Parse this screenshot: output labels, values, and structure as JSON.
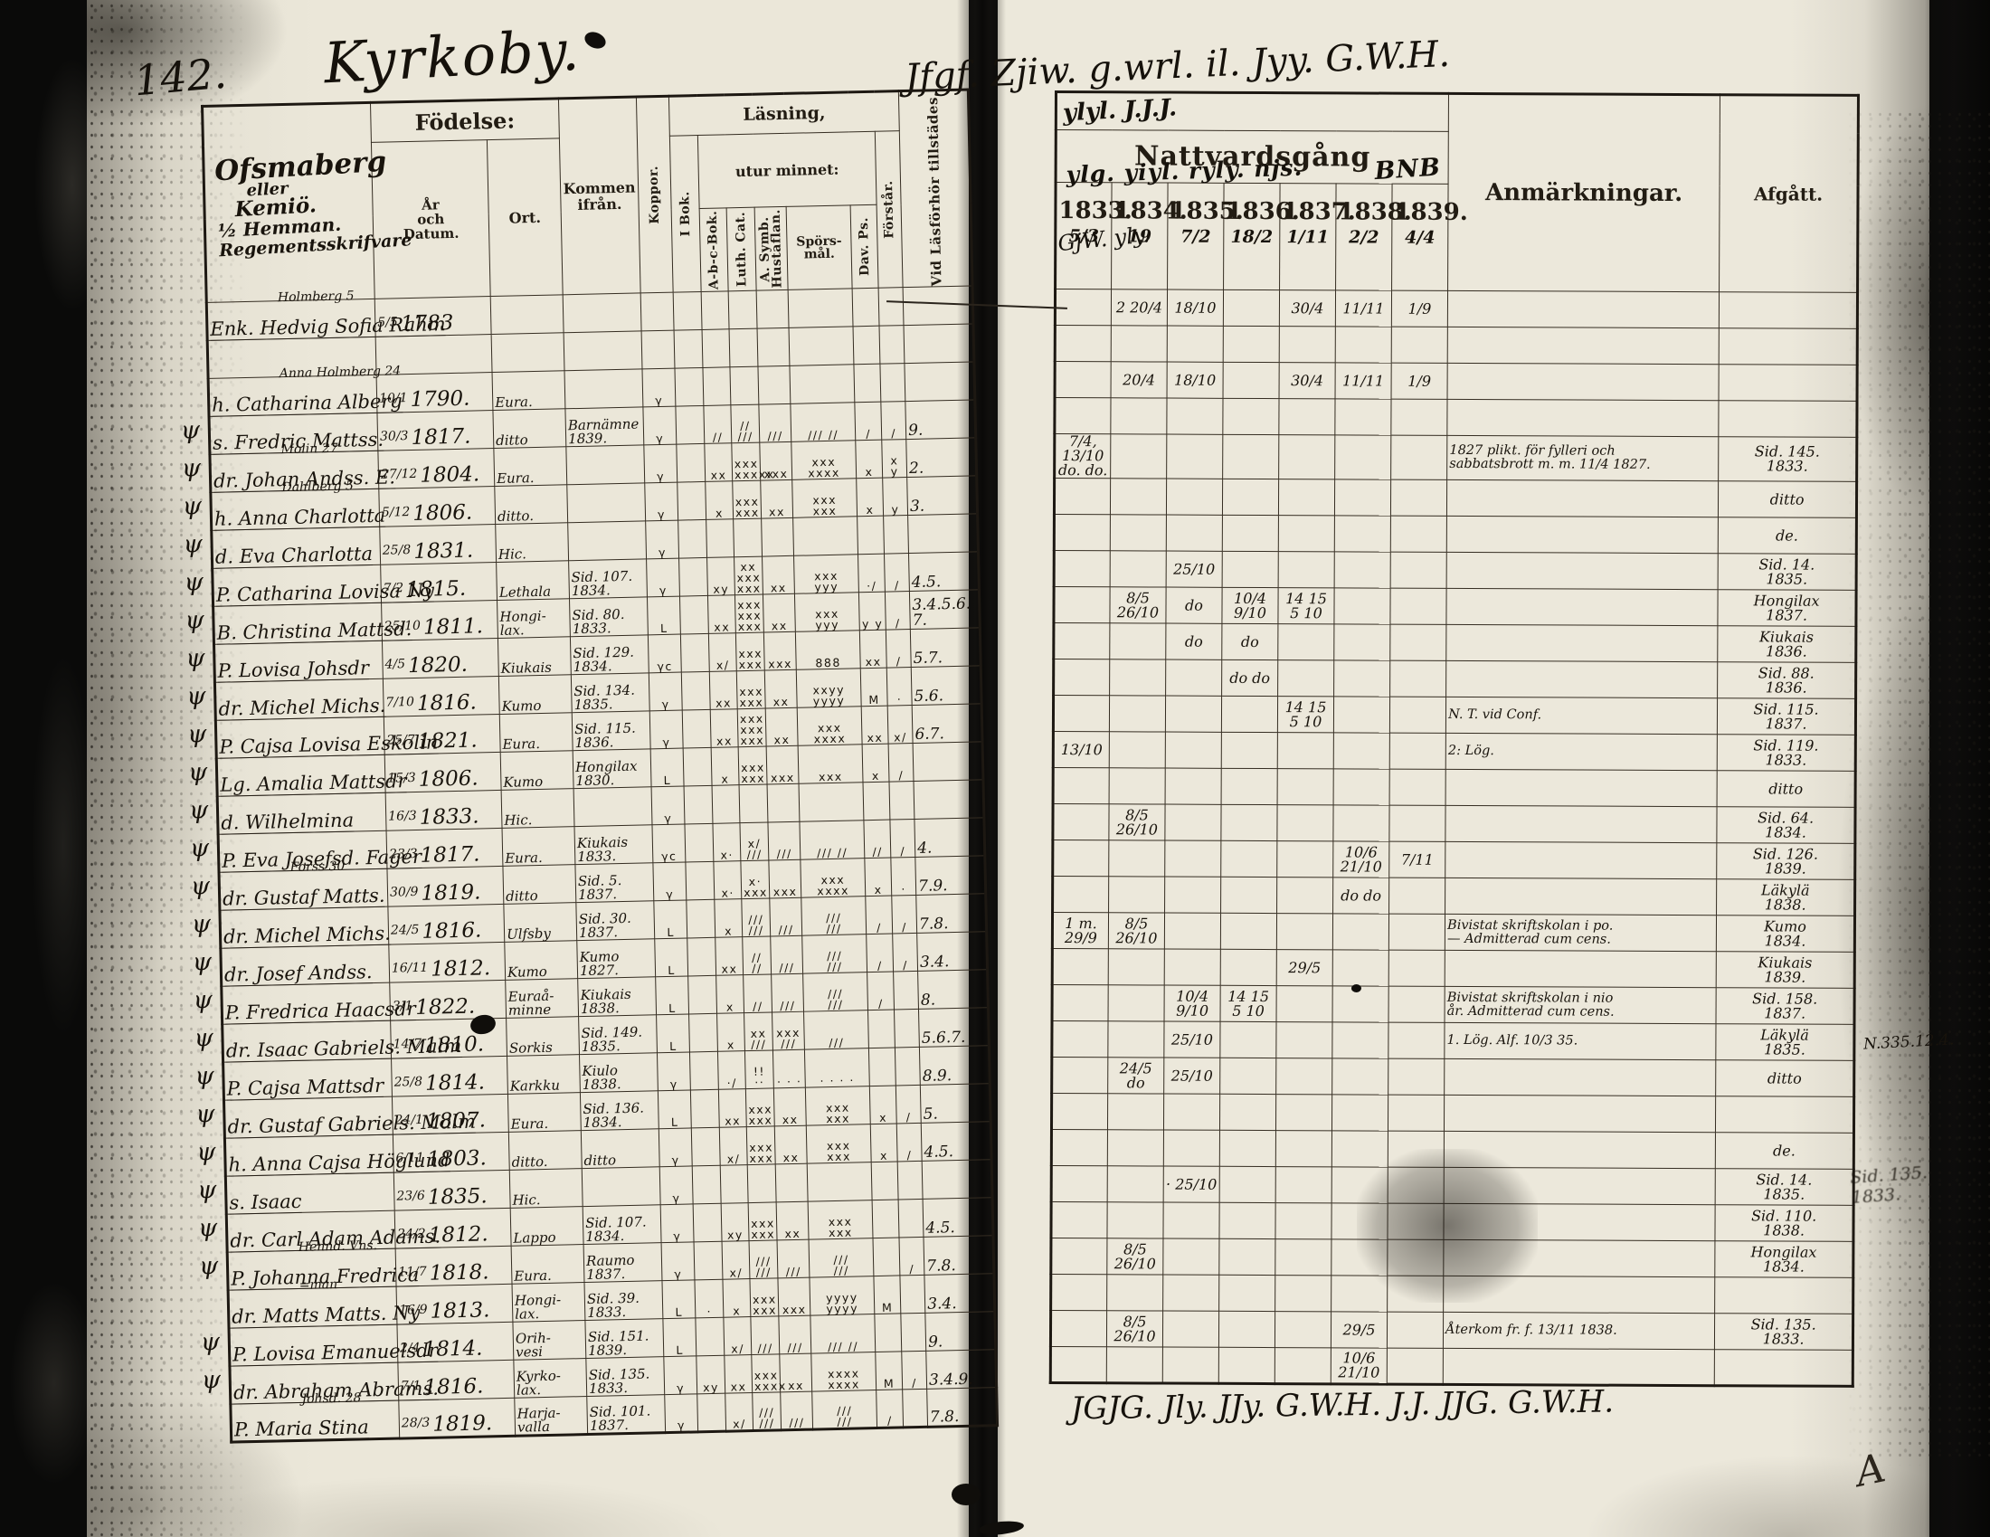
{
  "page_number": "142.",
  "title_script": "Kyrkoby.",
  "left_page": {
    "farm": [
      "Ofsmaberg",
      "eller",
      "Kemiö.",
      "½ Hemman.",
      "Regementsskrifvare"
    ],
    "header": {
      "birth": "Födelse:",
      "birth_date": "År\noch\nDatum.",
      "birth_place": "Ort.",
      "came_from": "Kommen\nifrån.",
      "smallpox": "Koppor.",
      "reading": "Läsning,",
      "by_heart": "utur minnet:",
      "in_book": "I Bok.",
      "abc_book": "A-b-c-Bok.",
      "luth_cat": "Luth. Cat.",
      "symbolum": "A. Symb.\nHustaflan.",
      "questions": "Spörs-\nmål.",
      "psalms": "Dav. Ps.",
      "understands": "Förstår.",
      "attendance": "Vid Läsförhör\ntillstädes."
    }
  },
  "right_page": {
    "communion_label": "Nattvardsgång",
    "remarks_label": "Anmärkningar.",
    "departed_label": "Afgått.",
    "years": [
      {
        "label": "1833.",
        "day": "5/3"
      },
      {
        "label": "1834.",
        "day": "19"
      },
      {
        "label": "1835.",
        "day": "7/2"
      },
      {
        "label": "1836.",
        "day": "18/2"
      },
      {
        "label": "1837.",
        "day": "1/11"
      },
      {
        "label": "1838.",
        "day": "2/2"
      },
      {
        "label": "1839.",
        "day": "4/4"
      }
    ],
    "scribbles": {
      "top": "Jfgf. Zjiw. g.wrl. il. Jyy. G.W.H.",
      "header1": "ylyl. J.J.J.",
      "header2": "ylg. yiyl. ryly. njs.",
      "header3": "BNB",
      "left_col": "GjW. yly.",
      "bottom": "JGJG.   Jly.   JJy.   G.W.H.   J.J.   JJG.   G.W.H."
    },
    "corner_mark": "A"
  },
  "rows": [
    {
      "margin_mark": "",
      "name_above": "Holmberg 5",
      "name": "Enk. Hedvig Sofia Rahm",
      "birth_day": "5/5",
      "birth_year": "1783",
      "birth_place": "",
      "came_from": "",
      "reading_marks": [
        "",
        "",
        "",
        "",
        "",
        "",
        "",
        ""
      ],
      "attended": "",
      "communion": {
        "1834": "2 20/4",
        "1835": "18/10",
        "1837": "30/4",
        "1838": "11/11",
        "1839": "1/9"
      },
      "remarks": "",
      "departed": ""
    },
    {
      "margin_mark": "",
      "name_above": "",
      "name": "",
      "birth_day": "",
      "birth_year": "",
      "birth_place": "",
      "came_from": "",
      "reading_marks": [
        "",
        "",
        "",
        "",
        "",
        "",
        "",
        ""
      ],
      "attended": "",
      "communion": {},
      "remarks": "",
      "departed": ""
    },
    {
      "margin_mark": "",
      "name_above": "Anna Holmberg 24",
      "name": "h. Catharina Alberg",
      "birth_day": "10/1",
      "birth_year": "1790.",
      "birth_place": "Eura.",
      "came_from": "",
      "reading_marks": [
        "γ",
        "",
        "",
        "",
        "",
        "",
        "",
        ""
      ],
      "attended": "",
      "communion": {
        "1834": "20/4",
        "1835": "18/10",
        "1837": "30/4",
        "1838": "11/11",
        "1839": "1/9"
      },
      "remarks": "",
      "departed": ""
    },
    {
      "margin_mark": "",
      "name_above": "",
      "name": "s. Fredric Mattss.",
      "birth_day": "30/3",
      "birth_year": "1817.",
      "birth_place": "ditto",
      "came_from": "Barnämne\n1839.",
      "reading_marks": [
        "γ",
        "",
        "//",
        "// ///",
        "///",
        "/// //",
        "/",
        "/"
      ],
      "attended": "9.",
      "communion": {},
      "remarks": "",
      "departed": ""
    },
    {
      "margin_mark": "ψ",
      "name_above": "Molin 27",
      "name": "dr. Johan Andss. E.",
      "birth_day": "27/12",
      "birth_year": "1804.",
      "birth_place": "Eura.",
      "came_from": "",
      "reading_marks": [
        "γ",
        "",
        "xx",
        "xxx\nxxxxx",
        "xxx",
        "xxx\nxxxx",
        "x",
        "x y"
      ],
      "attended": "2.",
      "communion": {
        "1833": "7/4, 13/10\ndo. do."
      },
      "remarks": "1827 plikt. för fylleri och\nsabbatsbrott m. m. 11/4 1827.",
      "departed": "Sid. 145.\n1833."
    },
    {
      "margin_mark": "ψ",
      "name_above": "Dahlberg 5",
      "name": "h. Anna Charlotta",
      "birth_day": "5/12",
      "birth_year": "1806.",
      "birth_place": "ditto.",
      "came_from": "",
      "reading_marks": [
        "γ",
        "",
        "x",
        "xxx\nxxx",
        "xx",
        "xxx\nxxx",
        "x",
        "y"
      ],
      "attended": "3.",
      "communion": {},
      "remarks": "",
      "departed": "ditto"
    },
    {
      "margin_mark": "ψ",
      "name_above": "",
      "name": "d. Eva Charlotta",
      "birth_day": "25/8",
      "birth_year": "1831.",
      "birth_place": "Hic.",
      "came_from": "",
      "reading_marks": [
        "γ",
        "",
        "",
        "",
        "",
        "",
        "",
        ""
      ],
      "attended": "",
      "communion": {},
      "remarks": "",
      "departed": "de."
    },
    {
      "margin_mark": "ψ",
      "name_above": "",
      "name": "P. Catharina Lovisa Ny",
      "birth_day": "7/2",
      "birth_year": "1815.",
      "birth_place": "Lethala",
      "came_from": "Sid. 107.\n1834.",
      "reading_marks": [
        "γ",
        "",
        "xy",
        "xx xxx\nxxx",
        "xx",
        "xxx\nyyy",
        "·/",
        "/"
      ],
      "attended": "4.5.",
      "communion": {
        "1835": "25/10"
      },
      "remarks": "",
      "departed": "Sid. 14.\n1835."
    },
    {
      "margin_mark": "ψ",
      "name_above": "",
      "name": "B. Christina Mattsd.",
      "birth_day": "25/10",
      "birth_year": "1811.",
      "birth_place": "Hongi-\nlax.",
      "came_from": "Sid. 80.\n1833.",
      "reading_marks": [
        "L",
        "",
        "xx",
        "xxx xxx\nxxx",
        "xx",
        "xxx\nyyy",
        "y y",
        "/"
      ],
      "attended": "3.4.5.6.\n7.",
      "communion": {
        "1834": "8/5 26/10",
        "1835": "do",
        "1836": "10/4 9/10",
        "1837": "14 15\n5 10"
      },
      "remarks": "",
      "departed": "Hongilax\n1837."
    },
    {
      "margin_mark": "ψ",
      "name_above": "",
      "name": "P. Lovisa Johsdr",
      "birth_day": "4/5",
      "birth_year": "1820.",
      "birth_place": "Kiukais",
      "came_from": "Sid. 129.\n1834.",
      "reading_marks": [
        "γc",
        "",
        "x/",
        "xxx\nxxx",
        "xxx",
        "888",
        "xx",
        "/"
      ],
      "attended": "5.7.",
      "communion": {
        "1835": "do",
        "1836": "do"
      },
      "remarks": "",
      "departed": "Kiukais\n1836."
    },
    {
      "margin_mark": "ψ",
      "name_above": "",
      "name": "dr. Michel Michs.",
      "birth_day": "7/10",
      "birth_year": "1816.",
      "birth_place": "Kumo",
      "came_from": "Sid. 134.\n1835.",
      "reading_marks": [
        "γ",
        "",
        "xx",
        "xxx\nxxx",
        "xx",
        "xxyy\nyyyy",
        "M",
        "·"
      ],
      "attended": "5.6.",
      "communion": {
        "1836": "do do"
      },
      "remarks": "",
      "departed": "Sid. 88.\n1836."
    },
    {
      "margin_mark": "ψ",
      "name_above": "",
      "name": "P. Cajsa Lovisa Eskolin",
      "birth_day": "25/7",
      "birth_year": "1821.",
      "birth_place": "Eura.",
      "came_from": "Sid. 115.\n1836.",
      "reading_marks": [
        "γ",
        "",
        "xx",
        "xxx xxx\nxxx",
        "xx",
        "xxx\nxxxx",
        "xx",
        "x/"
      ],
      "attended": "6.7.",
      "communion": {
        "1837": "14 15\n5 10"
      },
      "remarks": "N. T. vid Conf.",
      "departed": "Sid. 115.\n1837."
    },
    {
      "margin_mark": "ψ",
      "name_above": "",
      "name": "Lg. Amalia Mattsdr",
      "birth_day": "15/3",
      "birth_year": "1806.",
      "birth_place": "Kumo",
      "came_from": "Hongilax\n1830.",
      "reading_marks": [
        "L",
        "",
        "x",
        "xxx\nxxx",
        "xxx",
        "xxx",
        "x",
        "/"
      ],
      "attended": "",
      "communion": {
        "1833": "13/10"
      },
      "remarks": "2: Lög.",
      "departed": "Sid. 119.\n1833."
    },
    {
      "margin_mark": "ψ",
      "name_above": "",
      "name": "d. Wilhelmina",
      "birth_day": "16/3",
      "birth_year": "1833.",
      "birth_place": "Hic.",
      "came_from": "",
      "reading_marks": [
        "γ",
        "",
        "",
        "",
        "",
        "",
        "",
        ""
      ],
      "attended": "",
      "communion": {},
      "remarks": "",
      "departed": "ditto"
    },
    {
      "margin_mark": "ψ",
      "name_above": "",
      "name": "P. Eva Josefsd. Fager",
      "birth_day": "23/3",
      "birth_year": "1817.",
      "birth_place": "Eura.",
      "came_from": "Kiukais\n1833.",
      "reading_marks": [
        "γc",
        "",
        "x·",
        "x/ ///",
        "///",
        "/// //",
        "//",
        "/"
      ],
      "attended": "4.",
      "communion": {
        "1834": "8/5 26/10"
      },
      "remarks": "",
      "departed": "Sid. 64.\n1834."
    },
    {
      "margin_mark": "ψ",
      "name_above": "Forss 30",
      "name": "dr. Gustaf Matts.",
      "birth_day": "30/9",
      "birth_year": "1819.",
      "birth_place": "ditto",
      "came_from": "Sid. 5.\n1837.",
      "reading_marks": [
        "γ",
        "",
        "x·",
        "x· xxx",
        "xxx",
        "xxx\nxxxx",
        "x",
        "·"
      ],
      "attended": "7.9.",
      "communion": {
        "1838": "10/6 21/10",
        "1839": "7/11"
      },
      "remarks": "",
      "departed": "Sid. 126.\n1839."
    },
    {
      "margin_mark": "ψ",
      "name_above": "",
      "name": "dr. Michel Michs.",
      "birth_day": "24/5",
      "birth_year": "1816.",
      "birth_place": "Ulfsby",
      "came_from": "Sid. 30.\n1837.",
      "reading_marks": [
        "L",
        "",
        "x",
        "///\n///",
        "///",
        "///\n///",
        "/",
        "/"
      ],
      "attended": "7.8.",
      "communion": {
        "1838": "do do"
      },
      "remarks": "",
      "departed": "Läkylä\n1838."
    },
    {
      "margin_mark": "ψ",
      "name_above": "",
      "name": "dr. Josef Andss.",
      "birth_day": "16/11",
      "birth_year": "1812.",
      "birth_place": "Kumo",
      "came_from": "Kumo\n1827.",
      "reading_marks": [
        "L",
        "",
        "xx",
        "//\n//",
        "///",
        "///\n///",
        "/",
        "/"
      ],
      "attended": "3.4.",
      "communion": {
        "1833": "1 m. 29/9",
        "1834": "8/5 26/10"
      },
      "remarks": "Bivistat skriftskolan i po.\n— Admitterad cum cens.",
      "departed": "Kumo\n1834."
    },
    {
      "margin_mark": "ψ",
      "name_above": "",
      "name": "P. Fredrica Haacsdr",
      "birth_day": "3/1",
      "birth_year": "1822.",
      "birth_place": "Euraå-\nminne",
      "came_from": "Kiukais\n1838.",
      "reading_marks": [
        "L",
        "",
        "x",
        "//",
        "///",
        "///\n///",
        "/",
        ""
      ],
      "attended": "8.",
      "communion": {
        "1837": "29/5"
      },
      "remarks": "",
      "departed": "Kiukais\n1839."
    },
    {
      "margin_mark": "ψ",
      "name_above": "",
      "name": "dr. Isaac Gabriels. Malm",
      "birth_day": "14/7",
      "birth_year": "1810.",
      "birth_place": "Sorkis",
      "came_from": "Sid. 149.\n1835.",
      "reading_marks": [
        "L",
        "",
        "x",
        "xx ///",
        "xxx\n///",
        "///",
        "",
        ""
      ],
      "attended": "5.6.7.",
      "communion": {
        "1835": "10/4 9/10",
        "1836": "14 15\n5 10"
      },
      "remarks": "Bivistat skriftskolan i nio\når. Admitterad cum cens.",
      "departed": "Sid. 158.\n1837."
    },
    {
      "margin_mark": "ψ",
      "name_above": "",
      "name": "P. Cajsa Mattsdr",
      "birth_day": "25/8",
      "birth_year": "1814.",
      "birth_place": "Karkku",
      "came_from": "Kiulo\n1838.",
      "reading_marks": [
        "γ",
        "",
        "·/",
        "!! ··",
        "· · ·",
        "· · · ·",
        "",
        ""
      ],
      "attended": "8.9.",
      "communion": {
        "1835": "25/10"
      },
      "remarks": "1. Lög. Alf. 10/3 35.",
      "departed": "Läkylä\n1835.",
      "margin_note": "N.335.12.4."
    },
    {
      "margin_mark": "ψ",
      "name_above": "",
      "name": "dr. Gustaf Gabriels. Malm",
      "birth_day": "24/1",
      "birth_year": "1807.",
      "birth_place": "Eura.",
      "came_from": "Sid. 136.\n1834.",
      "reading_marks": [
        "L",
        "",
        "xx",
        "xxx\nxxx",
        "xx",
        "xxx\nxxx",
        "x",
        "/"
      ],
      "attended": "5.",
      "communion": {
        "1834": "24/5 do",
        "1835": "25/10"
      },
      "remarks": "",
      "departed": "ditto"
    },
    {
      "margin_mark": "ψ",
      "name_above": "",
      "name": "h. Anna Cajsa Höglund",
      "birth_day": "6/11",
      "birth_year": "1803.",
      "birth_place": "ditto.",
      "came_from": "ditto",
      "reading_marks": [
        "γ",
        "",
        "x/",
        "xxx\nxxx",
        "xx",
        "xxx\nxxx",
        "x",
        "/"
      ],
      "attended": "4.5.",
      "communion": {},
      "remarks": "",
      "departed": ""
    },
    {
      "margin_mark": "ψ",
      "name_above": "",
      "name": "s. Isaac",
      "birth_day": "23/6",
      "birth_year": "1835.",
      "birth_place": "Hic.",
      "came_from": "",
      "reading_marks": [
        "γ",
        "",
        "",
        "",
        "",
        "",
        "",
        ""
      ],
      "attended": "",
      "communion": {},
      "remarks": "",
      "departed": "de."
    },
    {
      "margin_mark": "ψ",
      "name_above": "",
      "name": "dr. Carl Adam Adams.",
      "birth_day": "24/2",
      "birth_year": "1812.",
      "birth_place": "Lappo",
      "came_from": "Sid. 107.\n1834.",
      "reading_marks": [
        "γ",
        "",
        "xy",
        "xxx\nxxx",
        "xx",
        "xxx\nxxx",
        "",
        ""
      ],
      "attended": "4.5.",
      "communion": {
        "1835": "· 25/10"
      },
      "remarks": "",
      "departed": "Sid. 14.\n1835."
    },
    {
      "margin_mark": "ψ",
      "name_above": "Hennd. Vns.",
      "name": "P. Johanna Fredrica",
      "birth_day": "11/7",
      "birth_year": "1818.",
      "birth_place": "Eura.",
      "came_from": "Raumo\n1837.",
      "reading_marks": [
        "γ",
        "",
        "x/",
        "///\n///",
        "///",
        "///\n///",
        "",
        "/"
      ],
      "attended": "7.8.",
      "communion": {},
      "remarks": "",
      "departed": "Sid. 110.\n1838."
    },
    {
      "margin_mark": "ψ",
      "name_above": "=man",
      "name": "dr. Matts Matts. Ny",
      "birth_day": "16/9",
      "birth_year": "1813.",
      "birth_place": "Hongi-\nlax.",
      "came_from": "Sid. 39.\n1833.",
      "reading_marks": [
        "L",
        "·",
        "x",
        "xxx\nxxx",
        "xxx",
        "yyyy\nyyyy",
        "M",
        ""
      ],
      "attended": "3.4.",
      "communion": {
        "1834": "8/5 26/10"
      },
      "remarks": "",
      "departed": "Hongilax\n1834."
    },
    {
      "margin_mark": "",
      "name_above": "",
      "name": "P. Lovisa Emanuelsdr",
      "birth_day": "2/4",
      "birth_year": "1814.",
      "birth_place": "Orih-\nvesi",
      "came_from": "Sid. 151.\n1839.",
      "reading_marks": [
        "L",
        "",
        "x/",
        "///",
        "///",
        "/// //",
        "",
        ""
      ],
      "attended": "9.",
      "communion": {},
      "remarks": "",
      "departed": ""
    },
    {
      "margin_mark": "ψ",
      "name_above": "",
      "name": "dr. Abraham Abrams.",
      "birth_day": "7/1",
      "birth_year": "1816.",
      "birth_place": "Kyrko-\nlax.",
      "came_from": "Sid. 135.\n1833.",
      "reading_marks": [
        "γ",
        "xy",
        "xx",
        "xxx\nxxxx",
        "xx",
        "xxxx\nxxxx",
        "M",
        "/"
      ],
      "attended": "3.4.9.",
      "communion": {
        "1834": "8/5 26/10",
        "1838": "29/5"
      },
      "remarks": "Återkom fr. f. 13/11 1838.",
      "departed": "Sid. 135.\n1833."
    },
    {
      "margin_mark": "ψ",
      "name_above": "Johsd. 28",
      "name": "P. Maria Stina",
      "birth_day": "28/3",
      "birth_year": "1819.",
      "birth_place": "Harja-\nvalla",
      "came_from": "Sid. 101.\n1837.",
      "reading_marks": [
        "γ",
        "",
        "x/",
        "///\n///",
        "///",
        "///\n///",
        "/",
        ""
      ],
      "attended": "7.8.",
      "communion": {
        "1838": "10/6 21/10"
      },
      "remarks": "",
      "departed": ""
    }
  ]
}
